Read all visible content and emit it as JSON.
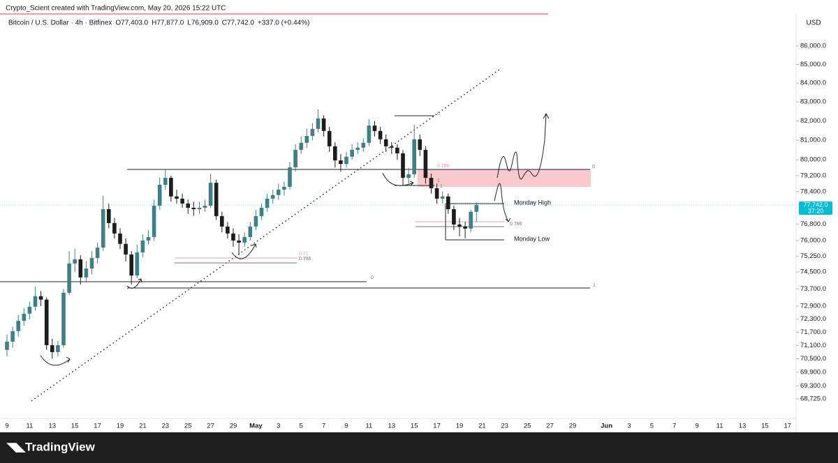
{
  "header": {
    "credit": "Crypto_Scient created with TradingView.com, May 20, 2026 15:22 UTC",
    "symbol": "Bitcoin / U.S. Dollar · 4h · Bitfinex",
    "open": "O77,403.0",
    "high": "H77,877.0",
    "low": "L76,909.0",
    "close": "C77,742.0",
    "change": "+337.0 (+0.44%)",
    "currency": "USD"
  },
  "chart_data": {
    "type": "candlestick",
    "log": true,
    "up_color": "#3f7f86",
    "down_color": "#1c1c1c",
    "ylim": [
      67880,
      87770
    ],
    "yticks": [
      {
        "value": 86000,
        "label": "86,000.0"
      },
      {
        "value": 85000,
        "label": "85,000.0"
      },
      {
        "value": 84000,
        "label": "84,000.0"
      },
      {
        "value": 83000,
        "label": "83,000.0"
      },
      {
        "value": 82000,
        "label": "82,000.0"
      },
      {
        "value": 81000,
        "label": "81,000.0"
      },
      {
        "value": 80000,
        "label": "80,000.0"
      },
      {
        "value": 79200,
        "label": "79,200.0"
      },
      {
        "value": 78400,
        "label": "78,400.0"
      },
      {
        "value": 76800,
        "label": "76,800.0"
      },
      {
        "value": 76000,
        "label": "76,000.0"
      },
      {
        "value": 75250,
        "label": "75,250.0"
      },
      {
        "value": 74500,
        "label": "74,500.0"
      },
      {
        "value": 73700,
        "label": "73,700.0"
      },
      {
        "value": 72900,
        "label": "72,900.0"
      },
      {
        "value": 72300,
        "label": "72,300.0"
      },
      {
        "value": 71700,
        "label": "71,700.0"
      },
      {
        "value": 71100,
        "label": "71,100.0"
      },
      {
        "value": 70500,
        "label": "70,500.0"
      },
      {
        "value": 69900,
        "label": "69,900.0"
      },
      {
        "value": 69300,
        "label": "69,300.0"
      },
      {
        "value": 68725,
        "label": "68,725.0"
      }
    ],
    "xticks": [
      "9",
      "11",
      "13",
      "15",
      "17",
      "19",
      "21",
      "23",
      "25",
      "27",
      "29",
      "May",
      "3",
      "5",
      "7",
      "9",
      "11",
      "13",
      "15",
      "17",
      "19",
      "21",
      "23",
      "25",
      "27",
      "29",
      "Jun",
      "3",
      "5",
      "7",
      "9",
      "11",
      "13",
      "15",
      "17"
    ],
    "last_price": {
      "value": 77742,
      "label": "77,742.0",
      "countdown": "37:20"
    },
    "candles": [
      [
        70900,
        71600,
        70600,
        71270
      ],
      [
        71270,
        71950,
        71000,
        71750
      ],
      [
        71750,
        72500,
        71500,
        72220
      ],
      [
        72220,
        72800,
        72000,
        72550
      ],
      [
        72550,
        73100,
        72300,
        72870
      ],
      [
        72870,
        73800,
        72700,
        73360
      ],
      [
        73360,
        73600,
        72900,
        73200
      ],
      [
        73200,
        73300,
        70900,
        71110
      ],
      [
        71110,
        71400,
        70500,
        70800
      ],
      [
        70800,
        71300,
        70600,
        71110
      ],
      [
        71110,
        73700,
        71000,
        73520
      ],
      [
        73520,
        75500,
        73400,
        74900
      ],
      [
        74900,
        75600,
        74500,
        75100
      ],
      [
        75100,
        75300,
        73900,
        74240
      ],
      [
        74240,
        75000,
        74000,
        74660
      ],
      [
        74660,
        75500,
        74400,
        75160
      ],
      [
        75160,
        75900,
        74900,
        75660
      ],
      [
        75660,
        78200,
        75500,
        77530
      ],
      [
        77530,
        77800,
        76600,
        76850
      ],
      [
        76850,
        77100,
        76100,
        76340
      ],
      [
        76340,
        76600,
        75600,
        75840
      ],
      [
        75840,
        76100,
        75000,
        75330
      ],
      [
        75330,
        75500,
        73900,
        74330
      ],
      [
        74330,
        75800,
        74200,
        75430
      ],
      [
        75430,
        76300,
        75200,
        76000
      ],
      [
        76000,
        76500,
        75800,
        76170
      ],
      [
        76170,
        78000,
        76000,
        77700
      ],
      [
        77700,
        79100,
        77500,
        78740
      ],
      [
        78740,
        79500,
        78500,
        79090
      ],
      [
        79090,
        79200,
        77900,
        78160
      ],
      [
        78160,
        78500,
        77800,
        78050
      ],
      [
        78050,
        78300,
        77600,
        77810
      ],
      [
        77810,
        78000,
        77300,
        77600
      ],
      [
        77600,
        77900,
        77200,
        77530
      ],
      [
        77530,
        77900,
        77300,
        77600
      ],
      [
        77600,
        78000,
        77400,
        77700
      ],
      [
        77700,
        79300,
        77600,
        78840
      ],
      [
        78840,
        79000,
        77000,
        77190
      ],
      [
        77190,
        77400,
        76400,
        76680
      ],
      [
        76680,
        76900,
        76100,
        76340
      ],
      [
        76340,
        76600,
        75700,
        76000
      ],
      [
        76000,
        76300,
        75300,
        75900
      ],
      [
        75900,
        76400,
        75700,
        76170
      ],
      [
        76170,
        76900,
        76000,
        76680
      ],
      [
        76680,
        77500,
        76500,
        77190
      ],
      [
        77190,
        77800,
        77000,
        77600
      ],
      [
        77600,
        78300,
        77400,
        78050
      ],
      [
        78050,
        78500,
        77800,
        78230
      ],
      [
        78230,
        78800,
        78000,
        78500
      ],
      [
        78500,
        78900,
        78200,
        78640
      ],
      [
        78640,
        79900,
        78500,
        79620
      ],
      [
        79620,
        80800,
        79400,
        80510
      ],
      [
        80510,
        81200,
        80300,
        80870
      ],
      [
        80870,
        81600,
        80600,
        81220
      ],
      [
        81220,
        81900,
        81000,
        81590
      ],
      [
        81590,
        82600,
        81400,
        82130
      ],
      [
        82130,
        82300,
        81200,
        81480
      ],
      [
        81480,
        81700,
        80400,
        80690
      ],
      [
        80690,
        80900,
        79600,
        79970
      ],
      [
        79970,
        80300,
        79400,
        79790
      ],
      [
        79790,
        80400,
        79600,
        80160
      ],
      [
        80160,
        80800,
        80000,
        80510
      ],
      [
        80510,
        80900,
        80300,
        80620
      ],
      [
        80620,
        81100,
        80400,
        80870
      ],
      [
        80870,
        82100,
        80700,
        81760
      ],
      [
        81760,
        82000,
        81200,
        81480
      ],
      [
        81480,
        81700,
        80800,
        81050
      ],
      [
        81050,
        81300,
        80400,
        80690
      ],
      [
        80690,
        80900,
        80300,
        80620
      ],
      [
        80620,
        80800,
        80000,
        80330
      ],
      [
        80330,
        80500,
        78700,
        79090
      ],
      [
        79090,
        79600,
        78800,
        79270
      ],
      [
        79270,
        81800,
        79100,
        81050
      ],
      [
        81050,
        81300,
        80200,
        80510
      ],
      [
        80510,
        80700,
        78800,
        79090
      ],
      [
        79090,
        79300,
        78300,
        78570
      ],
      [
        78570,
        78800,
        77800,
        78050
      ],
      [
        78050,
        78400,
        77800,
        78160
      ],
      [
        78160,
        78300,
        77300,
        77530
      ],
      [
        77530,
        77700,
        76500,
        76780
      ],
      [
        76780,
        77100,
        76200,
        76680
      ],
      [
        76680,
        76900,
        76100,
        76580
      ],
      [
        76580,
        77500,
        76400,
        77403
      ],
      [
        77403,
        77877,
        76909,
        77742
      ]
    ],
    "annotations": [
      "Monday High",
      "Monday Low",
      "0",
      "1",
      "0.786",
      "0.71",
      "0.786",
      "0",
      "1",
      "0.786",
      "0",
      "1",
      "0"
    ]
  },
  "footer": {
    "logo": "TradingView"
  }
}
